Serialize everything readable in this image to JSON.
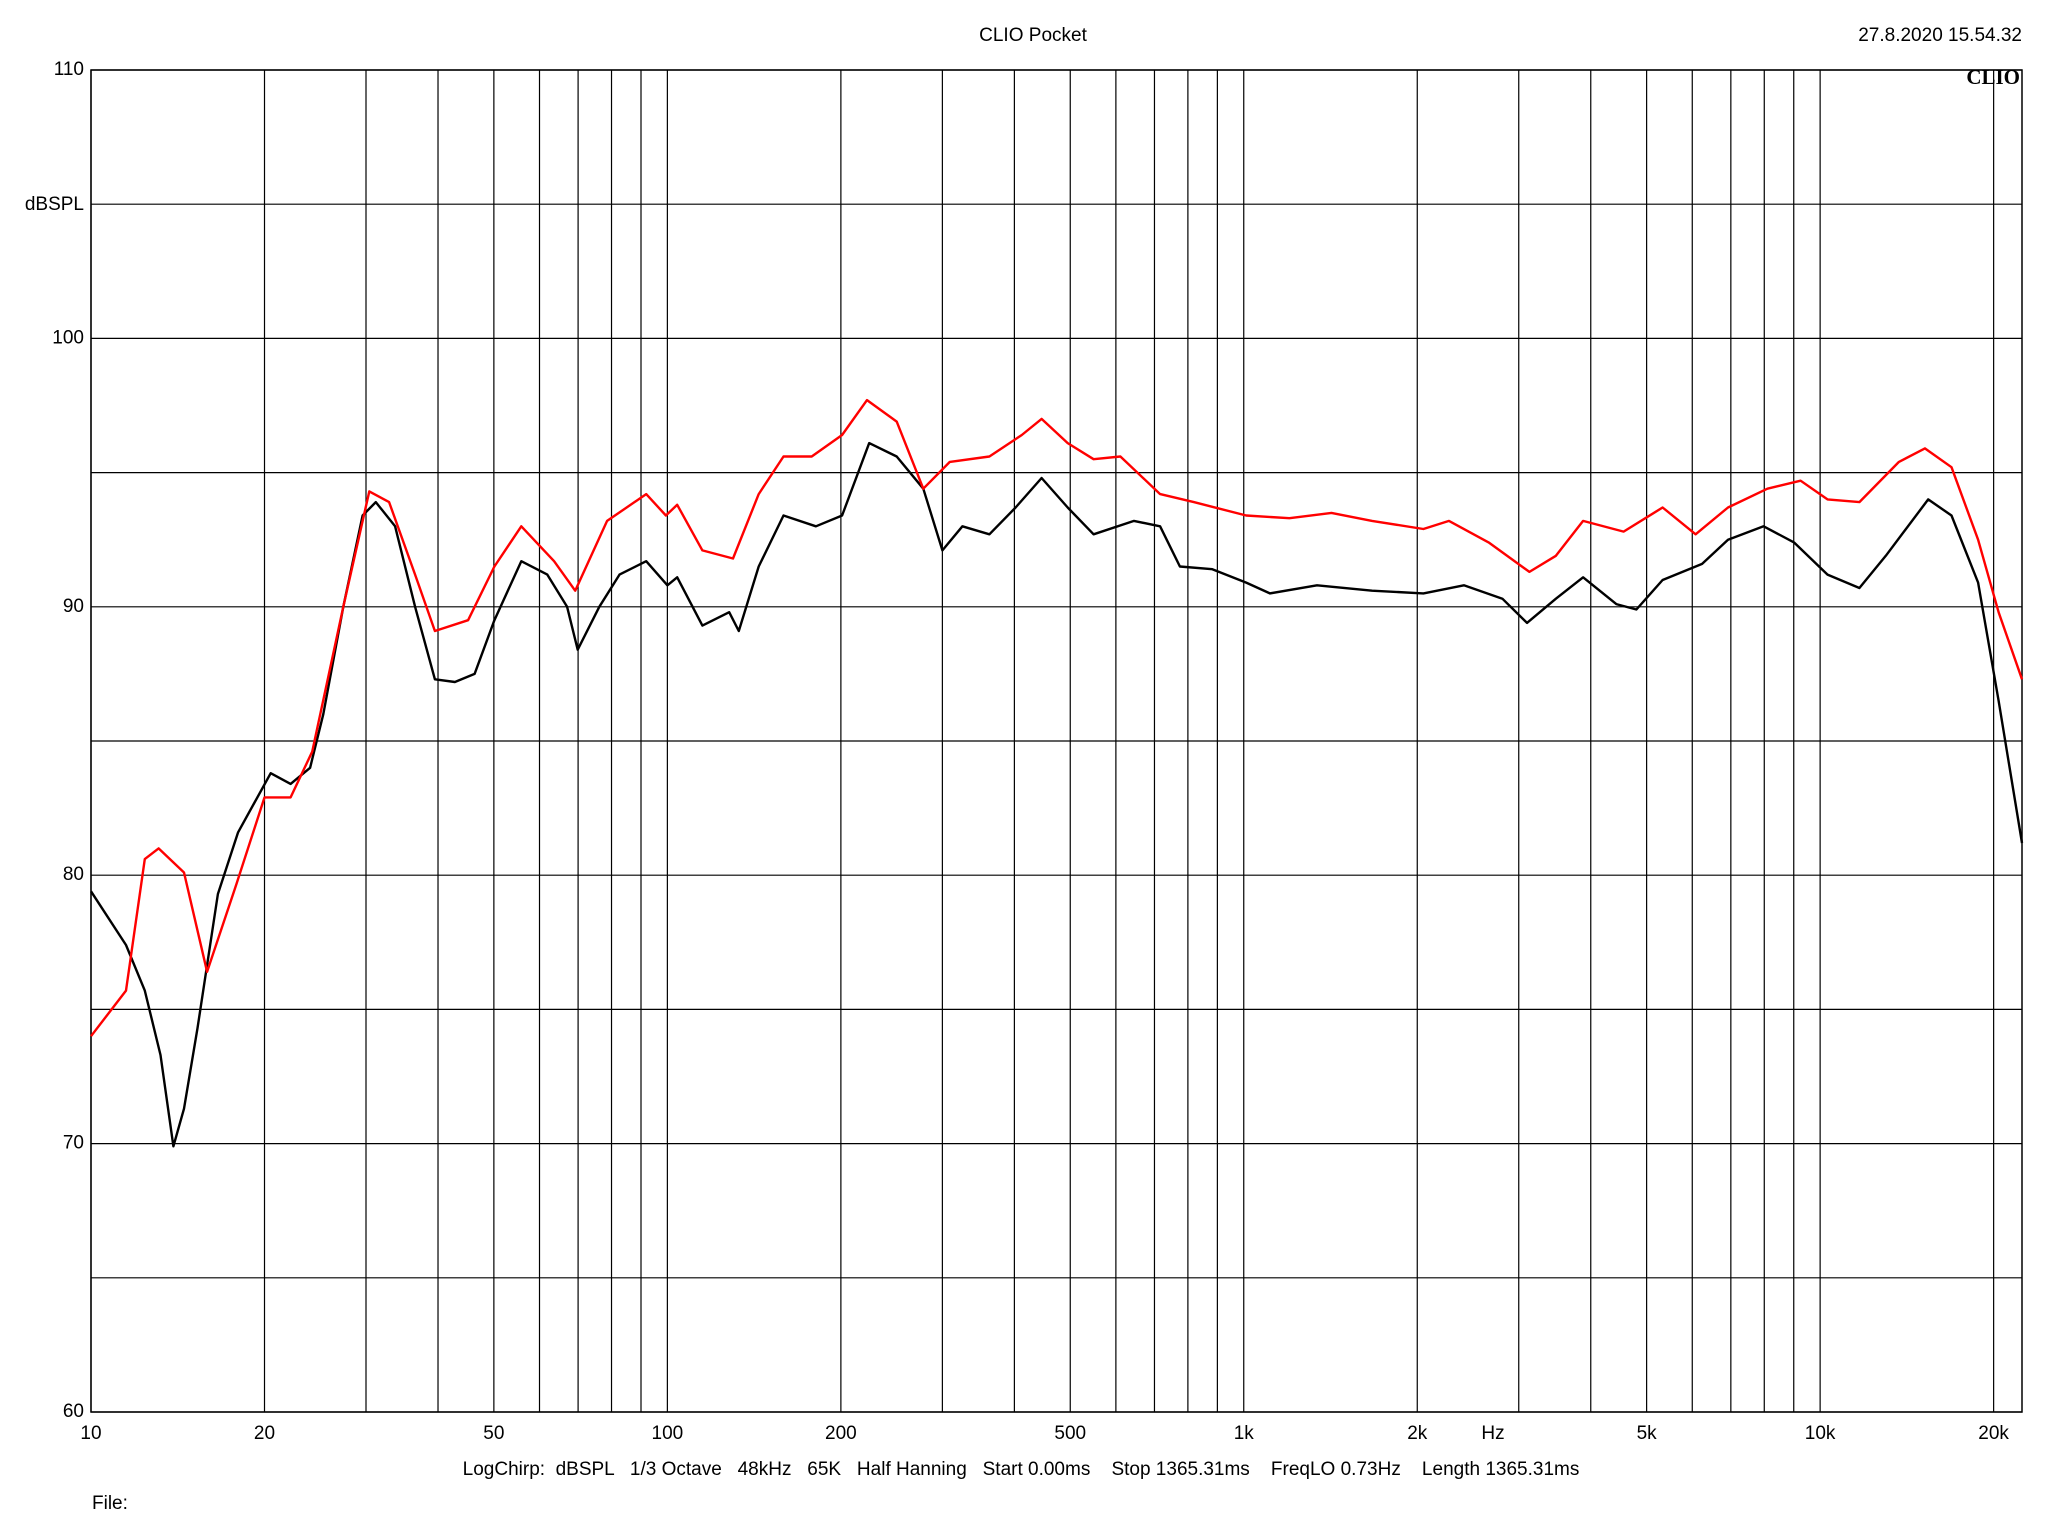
{
  "chart_data": {
    "type": "line",
    "title": "CLIO Pocket",
    "timestamp": "27.8.2020 15.54.32",
    "logo": "CLIO",
    "y_label": "dBSPL",
    "x_label": "Hz",
    "footer": "LogChirp:  dBSPL   1/3 Octave   48kHz   65K   Half Hanning   Start 0.00ms    Stop 1365.31ms    FreqLO 0.73Hz    Length 1365.31ms",
    "file_label": "File:",
    "x_scale": "log",
    "grid": true,
    "xlim": [
      10,
      22400
    ],
    "ylim": [
      60,
      110
    ],
    "xticks": [
      10,
      20,
      50,
      100,
      200,
      500,
      {
        "value": 1000,
        "label": "1k"
      },
      {
        "value": 2000,
        "label": "2k"
      },
      {
        "value": 5000,
        "label": "5k"
      },
      {
        "value": 10000,
        "label": "10k"
      },
      {
        "value": 20000,
        "label": "20k"
      }
    ],
    "x_minor_grid": [
      30,
      40,
      60,
      70,
      80,
      90,
      300,
      400,
      600,
      700,
      800,
      900,
      3000,
      4000,
      6000,
      7000,
      8000,
      9000
    ],
    "yticks": [
      60,
      70,
      80,
      90,
      100,
      110
    ],
    "y_minor_grid": [
      65,
      75,
      85,
      95,
      105
    ],
    "series": [
      {
        "color": "#000000",
        "x": [
          10,
          11.5,
          12.4,
          13.2,
          13.9,
          14.5,
          15.3,
          16.6,
          18.0,
          20.5,
          22.2,
          24.0,
          25.3,
          27.4,
          29.6,
          31.2,
          33.7,
          36.5,
          39.5,
          42.8,
          46.3,
          50.1,
          55.8,
          61.9,
          67.0,
          69.9,
          76.2,
          82.6,
          91.9,
          100,
          104,
          115,
          128,
          133,
          144,
          159,
          181,
          201,
          224,
          250,
          278,
          300,
          325,
          362,
          402,
          446,
          495,
          549,
          645,
          716,
          775,
          882,
          1010,
          1110,
          1340,
          1670,
          2050,
          2410,
          2810,
          3100,
          3480,
          3880,
          4430,
          4800,
          5330,
          6240,
          6920,
          7980,
          9010,
          10300,
          11700,
          13000,
          15400,
          16900,
          18800,
          20400,
          22400
        ],
        "values": [
          79.4,
          77.4,
          75.7,
          73.3,
          69.9,
          71.3,
          74.3,
          79.3,
          81.6,
          83.8,
          83.4,
          84.0,
          86.0,
          90.0,
          93.4,
          93.9,
          93.0,
          90.0,
          87.3,
          87.2,
          87.5,
          89.5,
          91.7,
          91.2,
          90.0,
          88.4,
          90.0,
          91.2,
          91.7,
          90.8,
          91.1,
          89.3,
          89.8,
          89.1,
          91.5,
          93.4,
          93.0,
          93.4,
          96.1,
          95.6,
          94.4,
          92.1,
          93.0,
          92.7,
          93.7,
          94.8,
          93.7,
          92.7,
          93.2,
          93.0,
          91.5,
          91.4,
          90.9,
          90.5,
          90.8,
          90.6,
          90.5,
          90.8,
          90.3,
          89.4,
          90.3,
          91.1,
          90.1,
          89.9,
          91.0,
          91.6,
          92.5,
          93.0,
          92.4,
          91.2,
          90.7,
          91.9,
          94.0,
          93.4,
          90.9,
          86.5,
          81.2
        ]
      },
      {
        "color": "#ff0000",
        "x": [
          10,
          11.5,
          12.4,
          13.1,
          14.5,
          15.9,
          17.9,
          20.0,
          22.2,
          24.2,
          27.4,
          30.4,
          32.9,
          36.5,
          39.5,
          45.1,
          50.1,
          55.8,
          63.6,
          69.2,
          78.6,
          91.9,
          99.4,
          104,
          115,
          130,
          144,
          159,
          178,
          201,
          222,
          250,
          278,
          309,
          362,
          412,
          446,
          495,
          549,
          611,
          716,
          819,
          1010,
          1200,
          1420,
          1670,
          2050,
          2270,
          2660,
          3130,
          3480,
          3880,
          4560,
          5330,
          6080,
          6920,
          8100,
          9250,
          10300,
          11700,
          13700,
          15200,
          16900,
          18800,
          20400,
          22400
        ],
        "values": [
          74.0,
          75.7,
          80.6,
          81.0,
          80.1,
          76.4,
          79.7,
          82.9,
          82.9,
          84.6,
          90.0,
          94.3,
          93.9,
          91.2,
          89.1,
          89.5,
          91.5,
          93.0,
          91.7,
          90.6,
          93.2,
          94.2,
          93.4,
          93.8,
          92.1,
          91.8,
          94.2,
          95.6,
          95.6,
          96.4,
          97.7,
          96.9,
          94.4,
          95.4,
          95.6,
          96.4,
          97.0,
          96.1,
          95.5,
          95.6,
          94.2,
          93.9,
          93.4,
          93.3,
          93.5,
          93.2,
          92.9,
          93.2,
          92.4,
          91.3,
          91.9,
          93.2,
          92.8,
          93.7,
          92.7,
          93.7,
          94.4,
          94.7,
          94.0,
          93.9,
          95.4,
          95.9,
          95.2,
          92.5,
          89.8,
          87.3
        ]
      }
    ]
  }
}
